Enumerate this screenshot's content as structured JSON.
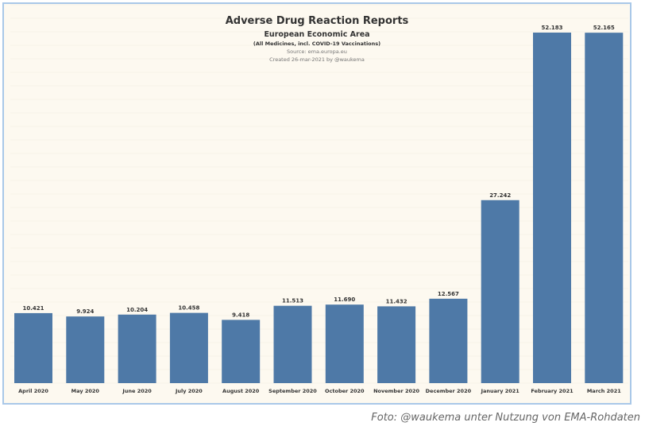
{
  "chart_data": {
    "type": "bar",
    "title": "Adverse Drug Reaction Reports",
    "subtitle": "European Economic Area",
    "note": "(All Medicines, incl. COVID-19 Vaccinations)",
    "source": "Source: ema.europa.eu",
    "created": "Created 26-mar-2021 by @waukema",
    "categories": [
      "April 2020",
      "May 2020",
      "June 2020",
      "July 2020",
      "August 2020",
      "September 2020",
      "October 2020",
      "November 2020",
      "December 2020",
      "January 2021",
      "February 2021",
      "March 2021"
    ],
    "values": [
      10421,
      9924,
      10204,
      10458,
      9418,
      11513,
      11690,
      11432,
      12567,
      27242,
      52183,
      52165
    ],
    "labels": [
      "10.421",
      "9.924",
      "10.204",
      "10.458",
      "9.418",
      "11.513",
      "11.690",
      "11.432",
      "12.567",
      "27.242",
      "52.183",
      "52.165"
    ],
    "xlabel": "",
    "ylabel": "",
    "ylim": [
      0,
      52183
    ],
    "bar_color": "#4e79a7",
    "background": "#fdf9f0"
  },
  "caption": "Foto: @waukema unter Nutzung von EMA-Rohdaten"
}
